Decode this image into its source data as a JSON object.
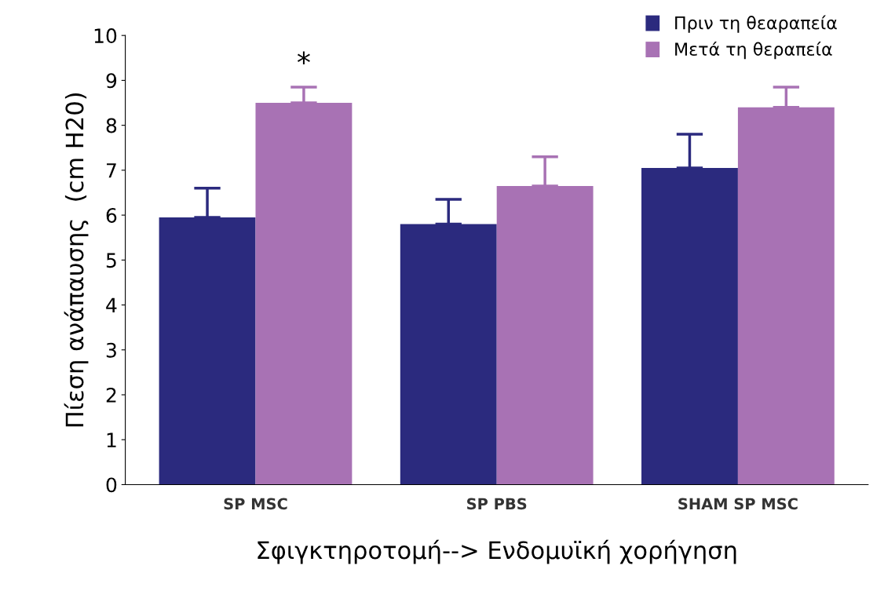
{
  "chart_data": {
    "type": "bar",
    "ylabel": "Πίεση ανάπαυσης  (cm H20)",
    "xlabel": "Σφιγκτηροτομή--> Ενδομυϊκή χορήγηση",
    "categories": [
      "SP MSC",
      "SP PBS",
      "SHAM SP MSC"
    ],
    "series": [
      {
        "name": "Πριν τη θεαραπεία",
        "color": "#2b2a7e",
        "values": [
          5.95,
          5.8,
          7.05
        ],
        "errors": [
          [
            5.95,
            6.6
          ],
          [
            5.8,
            6.35
          ],
          [
            7.05,
            7.8
          ]
        ]
      },
      {
        "name": "Μετά τη θεραπεία",
        "color": "#a872b4",
        "values": [
          8.5,
          6.65,
          8.4
        ],
        "errors": [
          [
            8.5,
            8.85
          ],
          [
            6.65,
            7.3
          ],
          [
            8.4,
            8.85
          ]
        ]
      }
    ],
    "annotations": [
      "*"
    ],
    "ylim": [
      0,
      10
    ],
    "yticks": [
      0,
      1,
      2,
      3,
      4,
      5,
      6,
      7,
      8,
      9,
      10
    ],
    "grid": false,
    "legend": "top right"
  }
}
